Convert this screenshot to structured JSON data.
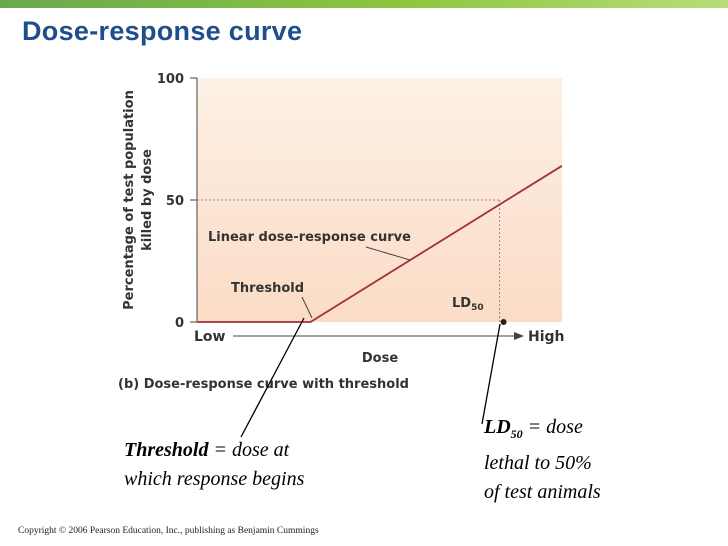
{
  "slide": {
    "title": "Dose-response curve",
    "accent_color": "#1f4e8c",
    "bar_color": "#8cc63f"
  },
  "chart_data": {
    "type": "line",
    "title": "",
    "caption": "(b) Dose-response curve with threshold",
    "xlabel": "Dose",
    "ylabel_line1": "Percentage of test population",
    "ylabel_line2": "killed by dose",
    "yticks": [
      "0",
      "50",
      "100"
    ],
    "ylim": [
      0,
      100
    ],
    "xlim": [
      0,
      1
    ],
    "x_low_label": "Low",
    "x_high_label": "High",
    "series": [
      {
        "color": "#a3303a",
        "x": [
          0,
          0.311,
          1
        ],
        "y": [
          0,
          0,
          64
        ]
      }
    ],
    "threshold": {
      "x": 0.311,
      "label": "Threshold"
    },
    "ld50": {
      "x": 0.829,
      "y": 50,
      "label_main": "LD",
      "label_sub": "50"
    },
    "curve_label": "Linear dose-response curve",
    "plot_background": "#fbe3d0",
    "grid": false
  },
  "callouts": {
    "threshold": {
      "term": "Threshold",
      "line1_rest": " = dose at",
      "line2": "which response begins"
    },
    "ld50": {
      "term": "LD",
      "term_sub": "50",
      "line1_rest": " = dose",
      "line2": "lethal to 50%",
      "line3": "of test animals"
    }
  },
  "footer": {
    "copyright": "Copyright © 2006 Pearson Education, Inc., publishing as Benjamin Cummings"
  }
}
